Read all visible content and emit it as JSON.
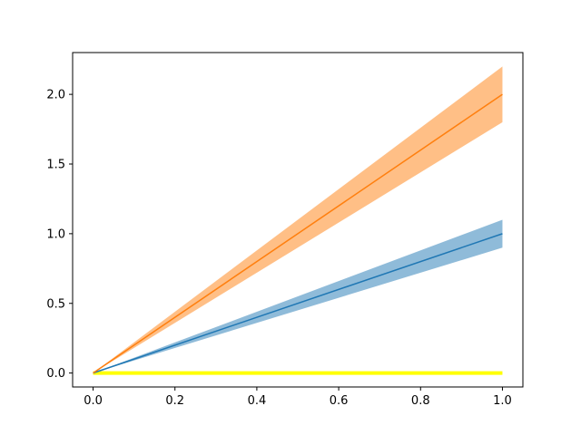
{
  "chart_data": {
    "type": "area",
    "title": "",
    "xlabel": "",
    "ylabel": "",
    "xlim": [
      -0.05,
      1.05
    ],
    "ylim": [
      -0.1,
      2.3
    ],
    "xticks": [
      0.0,
      0.2,
      0.4,
      0.6,
      0.8,
      1.0
    ],
    "xtick_labels": [
      "0.0",
      "0.2",
      "0.4",
      "0.6",
      "0.8",
      "1.0"
    ],
    "yticks": [
      0.0,
      0.5,
      1.0,
      1.5,
      2.0
    ],
    "ytick_labels": [
      "0.0",
      "0.5",
      "1.0",
      "1.5",
      "2.0"
    ],
    "grid": false,
    "legend": "none",
    "x": [
      0.0,
      1.0
    ],
    "series": [
      {
        "kind": "line_with_band",
        "values": [
          0.0,
          1.0
        ],
        "band_lower": [
          0.0,
          0.9
        ],
        "band_upper": [
          0.0,
          1.1
        ],
        "line_color": "#1f77b4",
        "band_color": "#1f77b4",
        "band_opacity": 0.5
      },
      {
        "kind": "line_with_band",
        "values": [
          0.0,
          2.0
        ],
        "band_lower": [
          0.0,
          1.8
        ],
        "band_upper": [
          0.0,
          2.2
        ],
        "line_color": "#ff7f0e",
        "band_color": "#ff7f0e",
        "band_opacity": 0.5
      },
      {
        "kind": "band",
        "band_lower": [
          0.0,
          0.0
        ],
        "band_upper": [
          0.0,
          0.0
        ],
        "band_color": "#ffff00",
        "band_opacity": 1.0,
        "edge_emphasis": "thick"
      }
    ]
  }
}
